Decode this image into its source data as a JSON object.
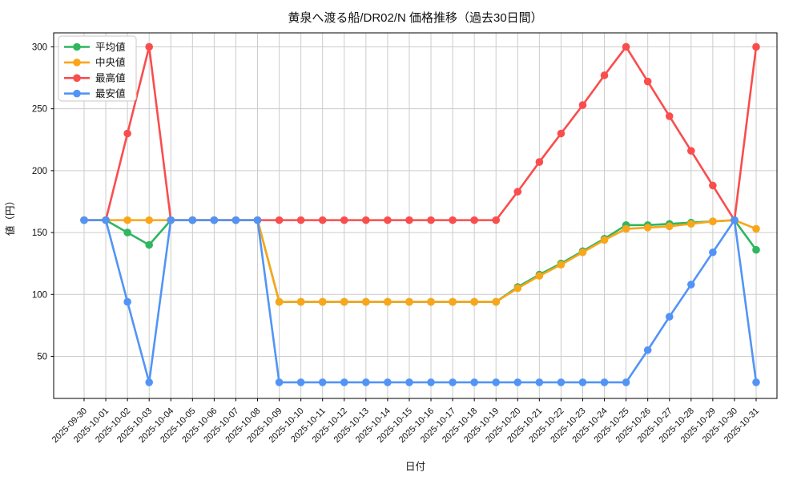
{
  "title": "黄泉へ渡る船/DR02/N 価格推移（過去30日間）",
  "axes": {
    "xlabel": "日付",
    "ylabel": "値（円）"
  },
  "legend": {
    "position": "upper left",
    "entries": [
      {
        "label": "平均値",
        "color": "#2eb75f"
      },
      {
        "label": "中央値",
        "color": "#faa61a"
      },
      {
        "label": "最高値",
        "color": "#fa4d4d"
      },
      {
        "label": "最安値",
        "color": "#5294f6"
      }
    ]
  },
  "style": {
    "grid_color": "#cccccc",
    "spine_color": "#000000",
    "background": "#ffffff",
    "marker_radius": 4.8,
    "line_width": 2.6
  },
  "chart_data": {
    "type": "line",
    "title": "黄泉へ渡る船/DR02/N 価格推移（過去30日間）",
    "xlabel": "日付",
    "ylabel": "値（円）",
    "grid": true,
    "legend_position": "upper left",
    "ylim": [
      16,
      311.3
    ],
    "yticks": [
      50,
      100,
      150,
      200,
      250,
      300
    ],
    "x": [
      "2025-09-30",
      "2025-10-01",
      "2025-10-02",
      "2025-10-03",
      "2025-10-04",
      "2025-10-05",
      "2025-10-06",
      "2025-10-07",
      "2025-10-08",
      "2025-10-09",
      "2025-10-10",
      "2025-10-11",
      "2025-10-12",
      "2025-10-13",
      "2025-10-14",
      "2025-10-15",
      "2025-10-16",
      "2025-10-17",
      "2025-10-18",
      "2025-10-19",
      "2025-10-20",
      "2025-10-21",
      "2025-10-22",
      "2025-10-23",
      "2025-10-24",
      "2025-10-25",
      "2025-10-26",
      "2025-10-27",
      "2025-10-28",
      "2025-10-29",
      "2025-10-30",
      "2025-10-31"
    ],
    "series": [
      {
        "name": "平均値",
        "color": "#2eb75f",
        "values": [
          160,
          160,
          150,
          140,
          160,
          160,
          160,
          160,
          160,
          94,
          94,
          94,
          94,
          94,
          94,
          94,
          94,
          94,
          94,
          94,
          106,
          116,
          125,
          135,
          145,
          156,
          156,
          157,
          158,
          159,
          160,
          136
        ]
      },
      {
        "name": "中央値",
        "color": "#faa61a",
        "values": [
          160,
          160,
          160,
          160,
          160,
          160,
          160,
          160,
          160,
          94,
          94,
          94,
          94,
          94,
          94,
          94,
          94,
          94,
          94,
          94,
          105,
          115,
          124,
          134,
          144,
          153,
          154,
          155,
          157,
          159,
          160,
          153
        ]
      },
      {
        "name": "最高値",
        "color": "#fa4d4d",
        "values": [
          160,
          160,
          230,
          300,
          160,
          160,
          160,
          160,
          160,
          160,
          160,
          160,
          160,
          160,
          160,
          160,
          160,
          160,
          160,
          160,
          183,
          207,
          230,
          253,
          277,
          300,
          272,
          244,
          216,
          188,
          160,
          300
        ]
      },
      {
        "name": "最安値",
        "color": "#5294f6",
        "values": [
          160,
          160,
          94,
          29,
          160,
          160,
          160,
          160,
          160,
          29,
          29,
          29,
          29,
          29,
          29,
          29,
          29,
          29,
          29,
          29,
          29,
          29,
          29,
          29,
          29,
          29,
          55,
          82,
          108,
          134,
          160,
          29
        ]
      }
    ]
  }
}
